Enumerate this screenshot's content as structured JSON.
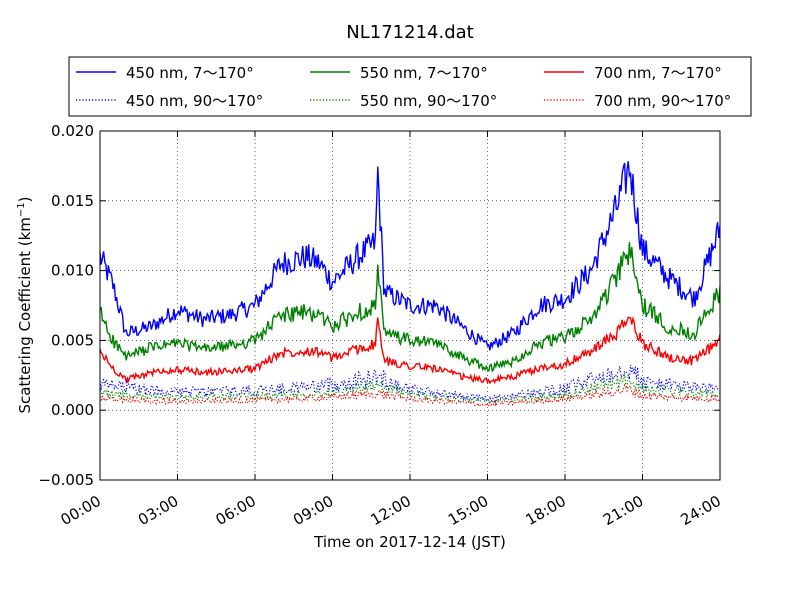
{
  "chart_data": {
    "type": "line",
    "title": "NL171214.dat",
    "xlabel": "Time on 2017-12-14 (JST)",
    "ylabel": "Scattering Coefficient (km",
    "ylabel_sup": "−1",
    "ylabel_close": ")",
    "xlim": [
      "00:00",
      "24:00"
    ],
    "ylim": [
      -0.005,
      0.02
    ],
    "x_ticks": [
      "00:00",
      "03:00",
      "06:00",
      "09:00",
      "12:00",
      "15:00",
      "18:00",
      "21:00",
      "24:00"
    ],
    "y_ticks": [
      "−0.005",
      "0.000",
      "0.005",
      "0.010",
      "0.015",
      "0.020"
    ],
    "grid": true,
    "legend_position": "top",
    "series": [
      {
        "name": "450 nm, 7～170°",
        "color": "#0000ff",
        "style": "solid",
        "x": [
          "00:00",
          "00:30",
          "01:00",
          "02:00",
          "03:00",
          "04:00",
          "05:00",
          "06:00",
          "07:00",
          "08:00",
          "08:30",
          "09:00",
          "10:00",
          "10:40",
          "10:45",
          "11:00",
          "12:00",
          "13:00",
          "14:00",
          "15:00",
          "16:00",
          "17:00",
          "18:00",
          "19:00",
          "20:00",
          "20:30",
          "21:00",
          "22:00",
          "23:00",
          "24:00"
        ],
        "values": [
          0.011,
          0.009,
          0.0055,
          0.006,
          0.0072,
          0.0065,
          0.0068,
          0.0075,
          0.0105,
          0.011,
          0.0105,
          0.0092,
          0.011,
          0.012,
          0.0172,
          0.0085,
          0.0075,
          0.0075,
          0.006,
          0.0045,
          0.0055,
          0.0075,
          0.008,
          0.01,
          0.0145,
          0.0175,
          0.0115,
          0.0095,
          0.008,
          0.013
        ]
      },
      {
        "name": "550 nm, 7～170°",
        "color": "#008000",
        "style": "solid",
        "x": [
          "00:00",
          "00:30",
          "01:00",
          "02:00",
          "03:00",
          "04:00",
          "05:00",
          "06:00",
          "07:00",
          "08:00",
          "08:30",
          "09:00",
          "10:00",
          "10:40",
          "10:45",
          "11:00",
          "12:00",
          "13:00",
          "14:00",
          "15:00",
          "16:00",
          "17:00",
          "18:00",
          "19:00",
          "20:00",
          "20:30",
          "21:00",
          "22:00",
          "23:00",
          "24:00"
        ],
        "values": [
          0.007,
          0.005,
          0.0038,
          0.0045,
          0.0048,
          0.0044,
          0.0046,
          0.005,
          0.0068,
          0.007,
          0.0068,
          0.006,
          0.007,
          0.0075,
          0.01,
          0.0055,
          0.005,
          0.0048,
          0.0038,
          0.003,
          0.0035,
          0.0048,
          0.0052,
          0.0065,
          0.0095,
          0.0115,
          0.0075,
          0.006,
          0.0055,
          0.0085
        ]
      },
      {
        "name": "700 nm, 7～170°",
        "color": "#ff0000",
        "style": "solid",
        "x": [
          "00:00",
          "00:30",
          "01:00",
          "02:00",
          "03:00",
          "04:00",
          "05:00",
          "06:00",
          "07:00",
          "08:00",
          "08:30",
          "09:00",
          "10:00",
          "10:40",
          "10:45",
          "11:00",
          "12:00",
          "13:00",
          "14:00",
          "15:00",
          "16:00",
          "17:00",
          "18:00",
          "19:00",
          "20:00",
          "20:30",
          "21:00",
          "22:00",
          "23:00",
          "24:00"
        ],
        "values": [
          0.0042,
          0.003,
          0.0022,
          0.0027,
          0.0029,
          0.0027,
          0.0028,
          0.003,
          0.0041,
          0.0043,
          0.0042,
          0.0037,
          0.0044,
          0.0047,
          0.0065,
          0.0035,
          0.0032,
          0.003,
          0.0024,
          0.0021,
          0.0024,
          0.003,
          0.0033,
          0.0042,
          0.0055,
          0.0066,
          0.0048,
          0.0038,
          0.0035,
          0.005
        ]
      },
      {
        "name": "450 nm, 90～170°",
        "color": "#0000ff",
        "style": "dotted",
        "x": [
          "00:00",
          "03:00",
          "06:00",
          "09:00",
          "10:45",
          "12:00",
          "15:00",
          "18:00",
          "20:30",
          "21:00",
          "24:00"
        ],
        "values": [
          0.0018,
          0.0013,
          0.0014,
          0.0018,
          0.0024,
          0.0015,
          0.0008,
          0.0015,
          0.0032,
          0.002,
          0.0015
        ]
      },
      {
        "name": "550 nm, 90～170°",
        "color": "#008000",
        "style": "dotted",
        "x": [
          "00:00",
          "03:00",
          "06:00",
          "09:00",
          "10:45",
          "12:00",
          "15:00",
          "18:00",
          "20:30",
          "21:00",
          "24:00"
        ],
        "values": [
          0.0012,
          0.0009,
          0.001,
          0.0013,
          0.0017,
          0.0011,
          0.0006,
          0.0011,
          0.0022,
          0.0015,
          0.0011
        ]
      },
      {
        "name": "700 nm, 90～170°",
        "color": "#ff0000",
        "style": "dotted",
        "x": [
          "00:00",
          "03:00",
          "06:00",
          "09:00",
          "10:45",
          "12:00",
          "15:00",
          "18:00",
          "20:30",
          "21:00",
          "24:00"
        ],
        "values": [
          0.0008,
          0.0006,
          0.0007,
          0.0009,
          0.0012,
          0.0008,
          0.0004,
          0.0008,
          0.0015,
          0.001,
          0.0008
        ]
      }
    ]
  }
}
